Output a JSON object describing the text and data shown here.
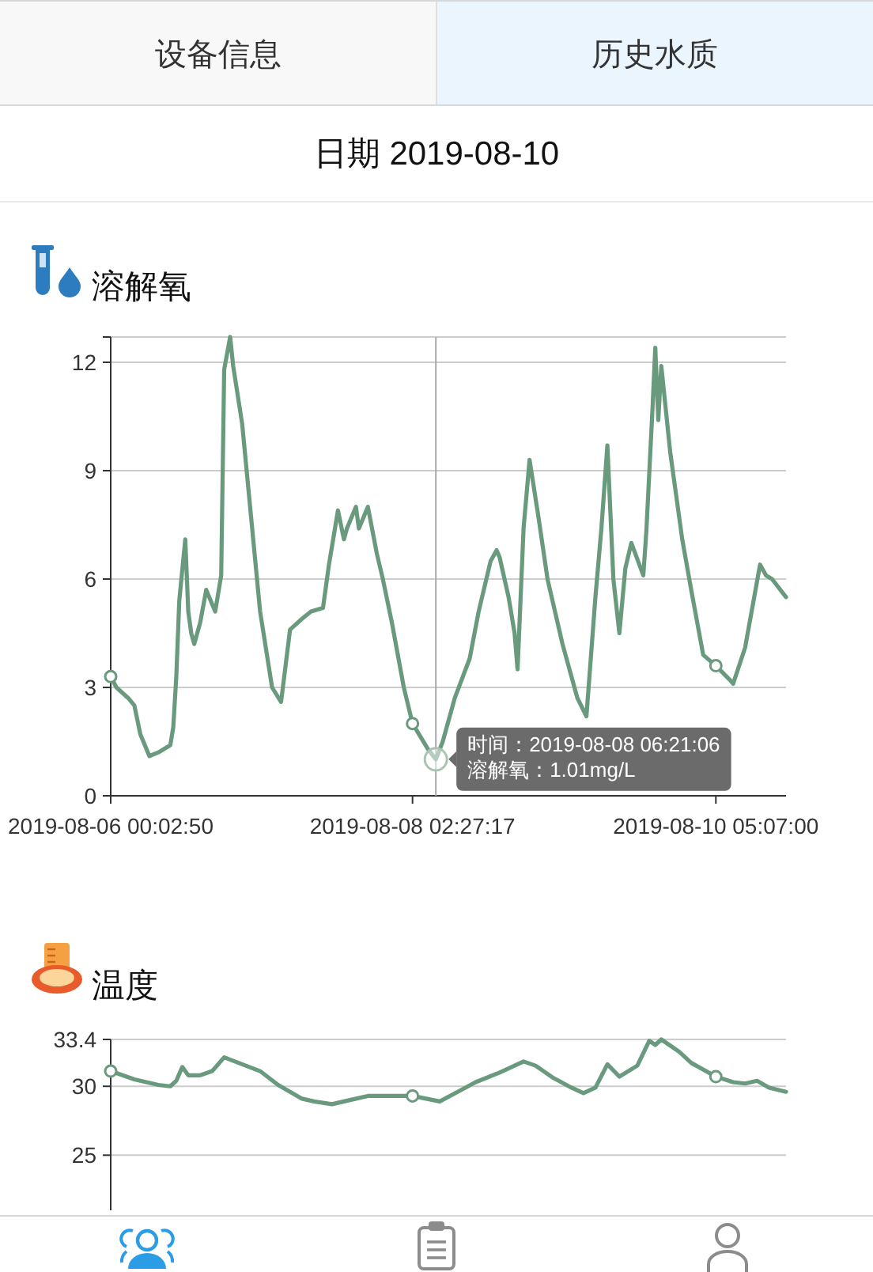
{
  "chart_data": [
    {
      "type": "other",
      "title": "日期 2019-08-10",
      "annotations": [
        "设备信息",
        "历史水质"
      ]
    },
    {
      "type": "line",
      "title": "溶解氧",
      "grid": "y",
      "xlim": [
        "2019-08-06T00:02:50",
        "2019-08-10T16:50"
      ],
      "ylim": [
        0,
        12.7
      ],
      "xticks": [
        {
          "value": "2019-08-06T00:02:50",
          "label": "2019-08-06 00:02:50"
        },
        {
          "value": "2019-08-08T02:27:17",
          "label": "2019-08-08 02:27:17"
        },
        {
          "value": "2019-08-10T05:07:00",
          "label": "2019-08-10 05:07:00"
        }
      ],
      "yticks": [
        0,
        3,
        6,
        9,
        12,
        {
          "value": 12.7,
          "label": null
        }
      ],
      "series": [
        {
          "type": "line",
          "color": "#6a9a7e",
          "x": [
            "2019-08-06T00:02:50",
            "2019-08-06T01:00",
            "2019-08-06T03:00",
            "2019-08-06T04:00",
            "2019-08-06T05:00",
            "2019-08-06T06:30",
            "2019-08-06T08:00",
            "2019-08-06T10:00",
            "2019-08-06T10:30",
            "2019-08-06T11:00",
            "2019-08-06T11:30",
            "2019-08-06T12:30",
            "2019-08-06T13:00",
            "2019-08-06T13:30",
            "2019-08-06T14:00",
            "2019-08-06T15:00",
            "2019-08-06T16:00",
            "2019-08-06T17:30",
            "2019-08-06T18:30",
            "2019-08-06T19:00",
            "2019-08-06T20:00",
            "2019-08-06T20:30",
            "2019-08-06T22:00",
            "2019-08-06T23:30",
            "2019-08-07T01:00",
            "2019-08-07T03:00",
            "2019-08-07T04:30",
            "2019-08-07T06:00",
            "2019-08-07T08:00",
            "2019-08-07T09:30",
            "2019-08-07T11:30",
            "2019-08-07T12:30",
            "2019-08-07T14:00",
            "2019-08-07T15:00",
            "2019-08-07T15:30",
            "2019-08-07T17:00",
            "2019-08-07T17:30",
            "2019-08-07T19:00",
            "2019-08-07T20:30",
            "2019-08-07T21:30",
            "2019-08-07T23:00",
            "2019-08-08T01:00",
            "2019-08-08T02:27:17",
            "2019-08-08T05:00",
            "2019-08-08T06:21:06",
            "2019-08-08T07:30",
            "2019-08-08T09:30",
            "2019-08-08T12:00",
            "2019-08-08T13:30",
            "2019-08-08T15:30",
            "2019-08-08T16:30",
            "2019-08-08T17:00",
            "2019-08-08T18:30",
            "2019-08-08T19:30",
            "2019-08-08T20:00",
            "2019-08-08T21:00",
            "2019-08-08T22:00",
            "2019-08-08T23:30",
            "2019-08-09T01:00",
            "2019-08-09T03:30",
            "2019-08-09T06:00",
            "2019-08-09T07:30",
            "2019-08-09T09:00",
            "2019-08-09T10:00",
            "2019-08-09T11:00",
            "2019-08-09T12:00",
            "2019-08-09T13:00",
            "2019-08-09T14:00",
            "2019-08-09T15:00",
            "2019-08-09T17:00",
            "2019-08-09T17:30",
            "2019-08-09T18:30",
            "2019-08-09T19:00",
            "2019-08-09T19:30",
            "2019-08-09T20:00",
            "2019-08-09T21:30",
            "2019-08-09T23:30",
            "2019-08-10T01:00",
            "2019-08-10T03:00",
            "2019-08-10T05:07:00",
            "2019-08-10T07:30",
            "2019-08-10T08:00",
            "2019-08-10T10:00",
            "2019-08-10T12:30",
            "2019-08-10T13:30",
            "2019-08-10T14:30",
            "2019-08-10T16:50"
          ],
          "values": [
            3.3,
            3.0,
            2.7,
            2.5,
            1.7,
            1.1,
            1.2,
            1.4,
            1.9,
            3.3,
            5.4,
            7.1,
            5.1,
            4.5,
            4.2,
            4.8,
            5.7,
            5.1,
            6.1,
            11.8,
            12.7,
            11.9,
            10.3,
            7.7,
            5.1,
            3.0,
            2.6,
            4.6,
            4.9,
            5.1,
            5.2,
            6.4,
            7.9,
            7.1,
            7.4,
            8.0,
            7.4,
            8.0,
            6.7,
            6.0,
            4.8,
            3.0,
            2.0,
            1.3,
            1.01,
            1.5,
            2.7,
            3.8,
            5.1,
            6.5,
            6.8,
            6.6,
            5.5,
            4.5,
            3.5,
            7.4,
            9.3,
            7.7,
            6.0,
            4.2,
            2.7,
            2.2,
            5.5,
            7.4,
            9.7,
            6.0,
            4.5,
            6.3,
            7.0,
            6.1,
            7.3,
            10.6,
            12.4,
            10.4,
            11.9,
            9.5,
            7.1,
            5.7,
            3.9,
            3.6,
            3.2,
            3.1,
            4.1,
            6.4,
            6.1,
            6.0,
            5.5
          ]
        },
        {
          "type": "scatter",
          "color": "#6a9a7e",
          "marker": "circle",
          "x": [
            "2019-08-06T00:02:50",
            "2019-08-08T02:27:17",
            "2019-08-10T05:07:00"
          ],
          "values": [
            3.3,
            2.0,
            3.6
          ]
        }
      ],
      "ref_lines": [
        {
          "axis": "x",
          "value": "2019-08-08T06:21:06",
          "color": "#aaaaaa"
        }
      ],
      "annotations": [
        {
          "text": "时间：2019-08-08 06:21:06",
          "x": "2019-08-08T06:21:06",
          "y": 1.01
        },
        {
          "text": "溶解氧：1.01mg/L",
          "x": "2019-08-08T06:21:06",
          "y": 1.01
        }
      ]
    },
    {
      "type": "line",
      "title": "温度",
      "grid": "y",
      "tick_labels": "y",
      "xlim": [
        "2019-08-06T00:02:50",
        "2019-08-10T16:50"
      ],
      "ylim": [
        21,
        33.4
      ],
      "yticks": [
        25,
        30,
        33.4
      ],
      "series": [
        {
          "type": "line",
          "color": "#6a9a7e",
          "x": [
            "2019-08-06T00:02:50",
            "2019-08-06T04:00",
            "2019-08-06T08:00",
            "2019-08-06T10:00",
            "2019-08-06T11:00",
            "2019-08-06T12:00",
            "2019-08-06T13:00",
            "2019-08-06T15:00",
            "2019-08-06T17:00",
            "2019-08-06T19:00",
            "2019-08-06T22:00",
            "2019-08-07T01:00",
            "2019-08-07T04:00",
            "2019-08-07T08:00",
            "2019-08-07T10:00",
            "2019-08-07T13:00",
            "2019-08-07T16:00",
            "2019-08-07T19:00",
            "2019-08-07T23:00",
            "2019-08-08T02:27:17",
            "2019-08-08T07:00",
            "2019-08-08T10:00",
            "2019-08-08T13:00",
            "2019-08-08T17:00",
            "2019-08-08T19:00",
            "2019-08-08T21:00",
            "2019-08-08T23:00",
            "2019-08-09T02:00",
            "2019-08-09T05:00",
            "2019-08-09T07:00",
            "2019-08-09T09:00",
            "2019-08-09T11:00",
            "2019-08-09T13:00",
            "2019-08-09T16:00",
            "2019-08-09T18:00",
            "2019-08-09T19:00",
            "2019-08-09T20:00",
            "2019-08-09T23:00",
            "2019-08-10T01:00",
            "2019-08-10T05:07:00",
            "2019-08-10T08:00",
            "2019-08-10T10:00",
            "2019-08-10T12:00",
            "2019-08-10T14:00",
            "2019-08-10T16:50"
          ],
          "values": [
            31.1,
            30.5,
            30.1,
            30.0,
            30.4,
            31.4,
            30.8,
            30.8,
            31.1,
            32.1,
            31.6,
            31.1,
            30.1,
            29.1,
            28.9,
            28.7,
            29.0,
            29.3,
            29.3,
            29.3,
            28.9,
            29.6,
            30.3,
            31.0,
            31.4,
            31.8,
            31.5,
            30.6,
            29.9,
            29.5,
            29.9,
            31.6,
            30.7,
            31.5,
            33.3,
            33.0,
            33.4,
            32.5,
            31.7,
            30.7,
            30.3,
            30.2,
            30.4,
            29.9,
            29.6
          ]
        },
        {
          "type": "scatter",
          "color": "#6a9a7e",
          "marker": "circle",
          "x": [
            "2019-08-06T00:02:50",
            "2019-08-08T02:27:17",
            "2019-08-10T05:07:00"
          ],
          "values": [
            31.1,
            29.3,
            30.7
          ]
        }
      ]
    }
  ]
}
